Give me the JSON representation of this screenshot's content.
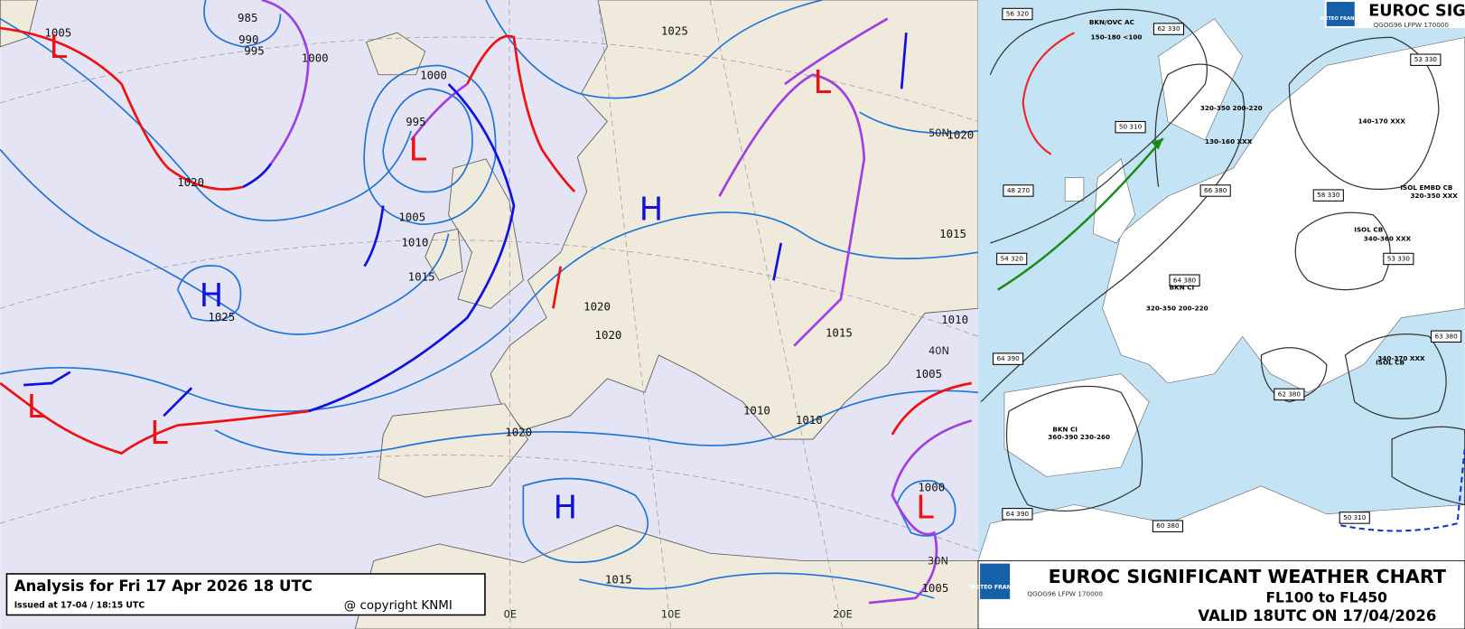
{
  "left_map": {
    "title": "Analysis for Fri 17 Apr 2026 18 UTC",
    "issued": "Issued at 17-04 / 18:15 UTC",
    "copyright": "@ copyright KNMI",
    "isobar_labels": [
      "1005",
      "985",
      "990",
      "995",
      "1000",
      "1000",
      "995",
      "1020",
      "1005",
      "1010",
      "1015",
      "1025",
      "1025",
      "1020",
      "1015",
      "1020",
      "1020",
      "1015",
      "1010",
      "1005",
      "1010",
      "1010",
      "1020",
      "1000",
      "1015",
      "1005"
    ],
    "pressure_centers": [
      "L",
      "L",
      "H",
      "H",
      "L",
      "L",
      "L",
      "H",
      "L"
    ],
    "grid_labels": [
      "50N",
      "40N",
      "30N",
      "0E",
      "10E",
      "20E"
    ]
  },
  "right_chart": {
    "logo": "METEO FRANCE",
    "header_title": "EUROC SIGN",
    "header_code": "QGOG96 LFPW 170000",
    "tropopause_boxes": [
      "56 320",
      "62 330",
      "53 330",
      "50 310",
      "58 330",
      "48 270",
      "66 380",
      "54 320",
      "64 380",
      "53 330",
      "64 390",
      "62 380",
      "63 380",
      "64 390",
      "60 380",
      "50 310"
    ],
    "cloud_labels": [
      "BKN/OVC AC",
      "150-180 <100",
      "320-350 200-220",
      "130-160 XXX",
      "BKN CI",
      "320-350 200-220",
      "ISOL CB",
      "340-360 XXX",
      "ISOL CB",
      "340-370 XXX",
      "BKN CI",
      "360-390 230-260",
      "140-170 XXX",
      "ISOL EMBD CB",
      "320-350 XXX"
    ],
    "footer_title": "EUROC SIGNIFICANT WEATHER CHART",
    "footer_levels": "FL100 to FL450",
    "footer_valid": "VALID 18UTC ON 17/04/2026",
    "footer_code": "QGOG96 LFPW 170000"
  }
}
